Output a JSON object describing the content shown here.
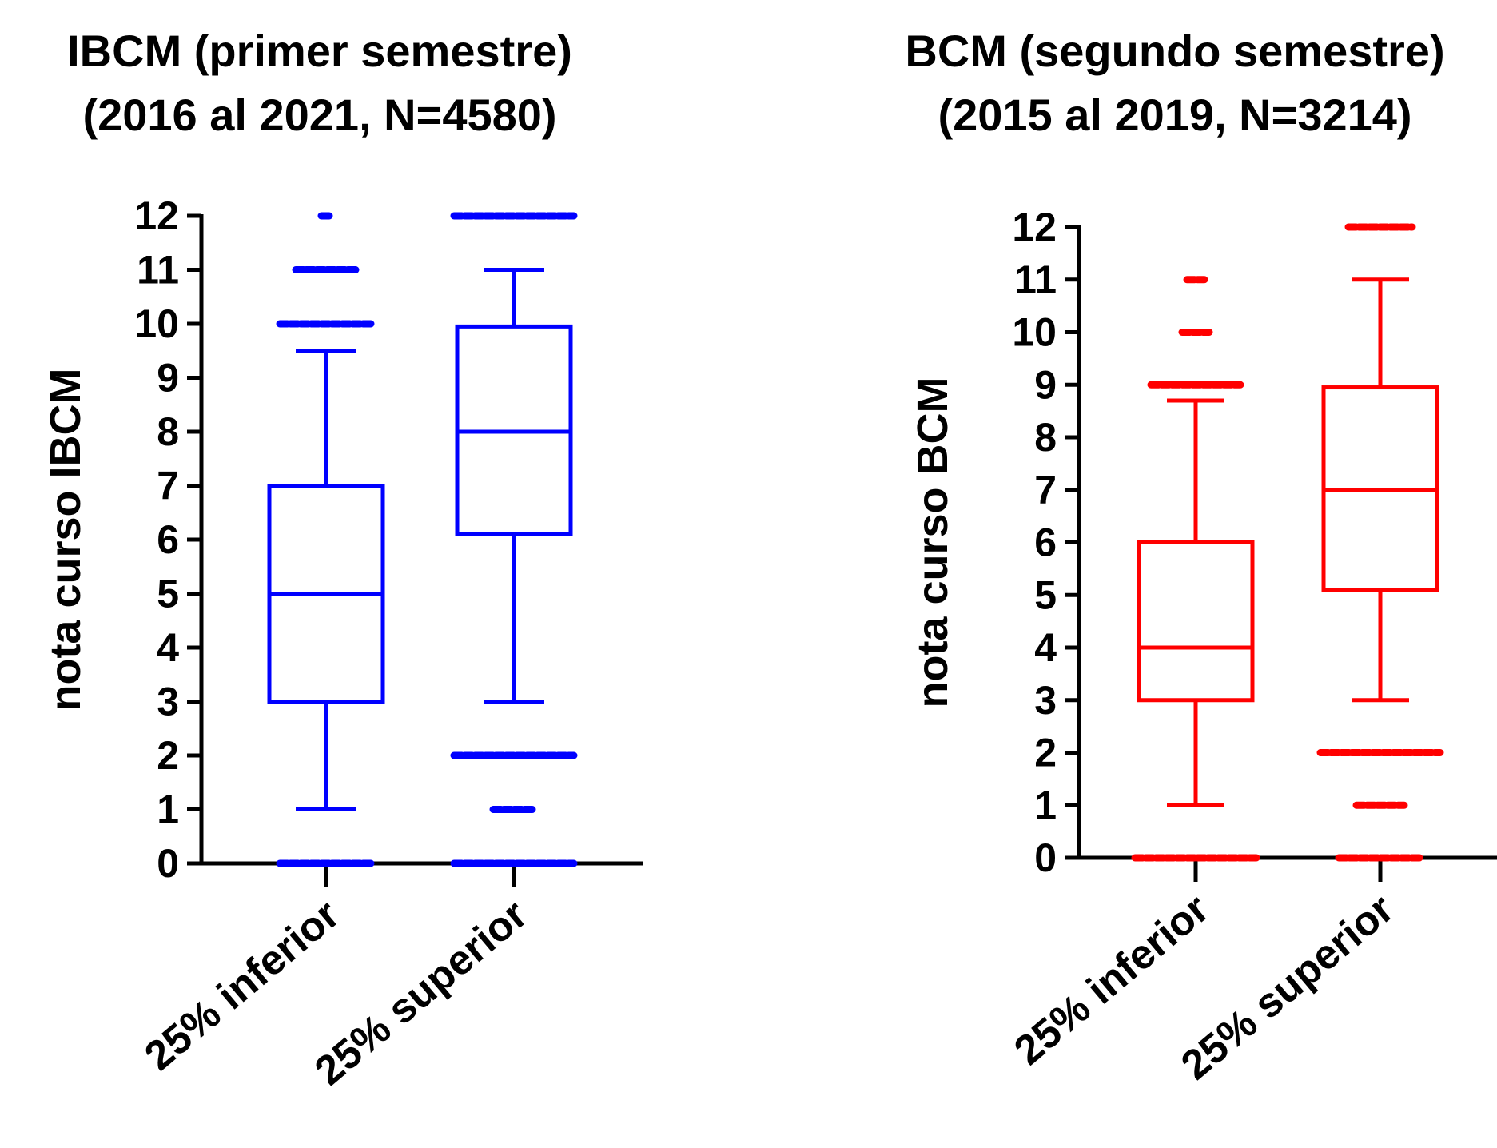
{
  "chart_data": [
    {
      "type": "box",
      "title_line1": "IBCM (primer semestre)",
      "title_line2": "(2016 al 2021, N=4580)",
      "ylabel": "nota curso IBCM",
      "ylim": [
        0,
        12
      ],
      "yticks": [
        "0",
        "1",
        "2",
        "3",
        "4",
        "5",
        "6",
        "7",
        "8",
        "9",
        "10",
        "11",
        "12"
      ],
      "color": "#0000ff",
      "categories": [
        "25% inferior",
        "25% superior"
      ],
      "boxes": [
        {
          "q1": 3,
          "median": 5,
          "q3": 7,
          "whisker_low": 1,
          "whisker_high": 9.5,
          "outliers": [
            0,
            10,
            11,
            12
          ]
        },
        {
          "q1": 6.1,
          "median": 8,
          "q3": 9.95,
          "whisker_low": 3,
          "whisker_high": 11,
          "outliers": [
            0,
            1,
            2,
            12
          ]
        }
      ]
    },
    {
      "type": "box",
      "title_line1": "BCM (segundo semestre)",
      "title_line2": "(2015 al 2019, N=3214)",
      "ylabel": "nota curso BCM",
      "ylim": [
        0,
        12
      ],
      "yticks": [
        "0",
        "1",
        "2",
        "3",
        "4",
        "5",
        "6",
        "7",
        "8",
        "9",
        "10",
        "11",
        "12"
      ],
      "color": "#ff0000",
      "categories": [
        "25% inferior",
        "25% superior"
      ],
      "boxes": [
        {
          "q1": 3,
          "median": 4,
          "q3": 6,
          "whisker_low": 1,
          "whisker_high": 8.7,
          "outliers": [
            0,
            9,
            10,
            11
          ]
        },
        {
          "q1": 5.1,
          "median": 7,
          "q3": 8.95,
          "whisker_low": 3,
          "whisker_high": 11,
          "outliers": [
            0,
            1,
            2,
            12
          ]
        }
      ]
    }
  ]
}
